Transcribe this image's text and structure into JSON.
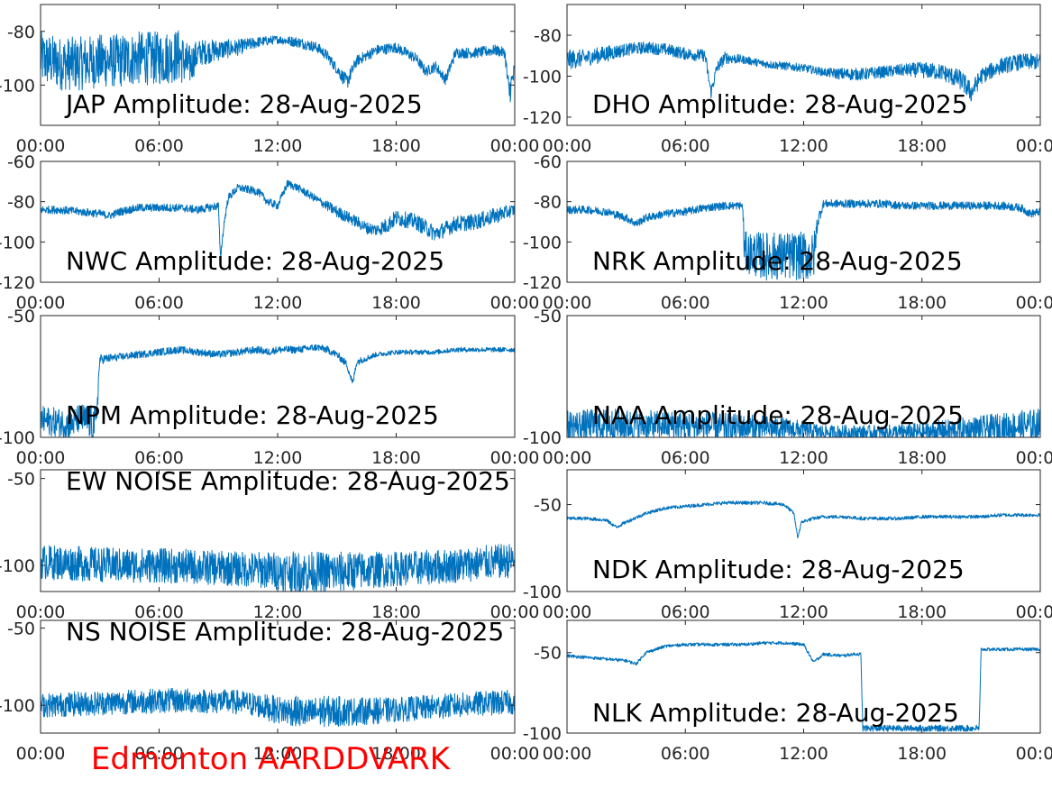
{
  "footer": "Edmonton AARDDVARK",
  "footer_color": "#ff0000",
  "series_color": "#0072bd",
  "chart_data": [
    {
      "type": "line",
      "title": "JAP Amplitude: 28-Aug-2025",
      "xticks": [
        "00:00",
        "06:00",
        "12:00",
        "18:00",
        "00:00"
      ],
      "ylim": [
        -115,
        -70
      ],
      "yticks": [
        -80,
        -100
      ],
      "x": [
        0,
        1,
        2,
        3,
        4,
        5,
        6,
        7,
        7.5,
        8,
        9,
        10,
        11,
        12,
        13,
        14,
        14.5,
        15,
        15.5,
        16,
        17,
        18,
        19,
        19.5,
        20,
        20.5,
        21,
        22,
        23,
        23.5,
        23.7,
        24
      ],
      "y": [
        -90,
        -92,
        -92,
        -91,
        -91,
        -90,
        -90,
        -89,
        -93,
        -88,
        -87,
        -86,
        -84,
        -83,
        -84,
        -86,
        -89,
        -94,
        -99,
        -91,
        -87,
        -86,
        -90,
        -95,
        -93,
        -98,
        -88,
        -88,
        -87,
        -88,
        -103,
        -95
      ],
      "noise": [
        10,
        10,
        10,
        10,
        10,
        10,
        10,
        10,
        8,
        5,
        4,
        3,
        2,
        1.5,
        2,
        2,
        2,
        2,
        3,
        2,
        2,
        2,
        2,
        2,
        2,
        2,
        2,
        2,
        2,
        2,
        6,
        4
      ]
    },
    {
      "type": "line",
      "title": "DHO Amplitude: 28-Aug-2025",
      "xticks": [
        "00:00",
        "06:00",
        "12:00",
        "18:00",
        "00:00"
      ],
      "ylim": [
        -124,
        -65
      ],
      "yticks": [
        -80,
        -100,
        -120
      ],
      "x": [
        0,
        1,
        2,
        3,
        4,
        5,
        6,
        7,
        7.3,
        7.6,
        8,
        9,
        10,
        11,
        12,
        13,
        14,
        15,
        16,
        17,
        18,
        19,
        20,
        20.5,
        21,
        22,
        23,
        24
      ],
      "y": [
        -92,
        -91,
        -89,
        -87,
        -86,
        -87,
        -89,
        -90,
        -108,
        -96,
        -91,
        -92,
        -94,
        -95,
        -96,
        -98,
        -99,
        -99,
        -98,
        -97,
        -97,
        -98,
        -102,
        -108,
        -100,
        -95,
        -93,
        -93
      ],
      "noise": [
        5,
        4,
        4,
        3,
        3,
        3,
        3,
        3,
        3,
        3,
        3,
        2,
        2,
        2,
        2,
        2,
        3,
        3,
        3,
        3,
        4,
        4,
        5,
        5,
        4,
        4,
        4,
        4
      ]
    },
    {
      "type": "line",
      "title": "NWC Amplitude: 28-Aug-2025",
      "xticks": [
        "00:00",
        "06:00",
        "12:00",
        "18:00",
        "00:00"
      ],
      "ylim": [
        -120,
        -60
      ],
      "yticks": [
        -60,
        -80,
        -100,
        -120
      ],
      "x": [
        0,
        1,
        2,
        3,
        3.5,
        4,
        5,
        6,
        7,
        8,
        8.5,
        9,
        9.1,
        9.3,
        9.5,
        10,
        11,
        11.5,
        12,
        12.5,
        13,
        14,
        15,
        16,
        16.5,
        17,
        17.5,
        18,
        19,
        20,
        21,
        22,
        23,
        24
      ],
      "y": [
        -84,
        -84,
        -85,
        -86,
        -87,
        -85,
        -83,
        -83,
        -83,
        -84,
        -83,
        -82,
        -108,
        -90,
        -78,
        -73,
        -75,
        -80,
        -82,
        -71,
        -73,
        -79,
        -85,
        -90,
        -93,
        -94,
        -92,
        -88,
        -90,
        -96,
        -91,
        -90,
        -87,
        -84
      ],
      "noise": [
        2,
        2,
        2,
        2,
        2,
        2,
        2,
        2,
        2,
        2,
        2,
        2,
        2,
        2,
        2,
        2,
        2,
        2,
        2,
        2,
        2,
        2,
        3,
        3,
        3,
        3,
        4,
        4,
        4,
        4,
        4,
        4,
        4,
        3
      ]
    },
    {
      "type": "line",
      "title": "NRK Amplitude: 28-Aug-2025",
      "xticks": [
        "00:00",
        "06:00",
        "12:00",
        "18:00",
        "00:00"
      ],
      "ylim": [
        -120,
        -60
      ],
      "yticks": [
        -60,
        -80,
        -100,
        -120
      ],
      "x": [
        0,
        1,
        2,
        3,
        3.5,
        4,
        5,
        6,
        7,
        8,
        8.9,
        9,
        10,
        11,
        12,
        12.5,
        12.7,
        13,
        14,
        15,
        16,
        17,
        18,
        19,
        20,
        21,
        22,
        23,
        23.5,
        24
      ],
      "y": [
        -84,
        -84,
        -85,
        -88,
        -91,
        -88,
        -86,
        -85,
        -83,
        -82,
        -82,
        -105,
        -107,
        -107,
        -107,
        -108,
        -90,
        -81,
        -81,
        -81,
        -81,
        -82,
        -82,
        -82,
        -82,
        -82,
        -82,
        -83,
        -86,
        -85
      ],
      "noise": [
        2,
        2,
        2,
        2,
        2,
        2,
        2,
        2,
        2,
        2,
        2,
        10,
        12,
        12,
        12,
        12,
        4,
        2,
        2,
        2,
        2,
        2,
        2,
        2,
        2,
        2,
        2,
        2,
        2,
        2
      ]
    },
    {
      "type": "line",
      "title": "NPM Amplitude: 28-Aug-2025",
      "xticks": [
        "00:00",
        "06:00",
        "12:00",
        "18:00",
        "00:00"
      ],
      "ylim": [
        -100,
        -50
      ],
      "yticks": [
        -50,
        -100
      ],
      "x": [
        0,
        1,
        1.5,
        2,
        2.8,
        3,
        4,
        5,
        6,
        7,
        8,
        9,
        10,
        11,
        11.5,
        12,
        13,
        14,
        14.5,
        15,
        15.5,
        15.8,
        16,
        17,
        18,
        19,
        20,
        21,
        22,
        23,
        24
      ],
      "y": [
        -93,
        -94,
        -95,
        -92,
        -95,
        -68,
        -67,
        -66,
        -65,
        -64,
        -65,
        -66,
        -65,
        -64,
        -65,
        -64,
        -64,
        -63,
        -64,
        -66,
        -70,
        -78,
        -69,
        -66,
        -65,
        -65,
        -65,
        -64,
        -64,
        -64,
        -64
      ],
      "noise": [
        6,
        6,
        6,
        6,
        8,
        2,
        1.5,
        1.5,
        1.5,
        1.5,
        1.5,
        1.5,
        1.5,
        1.5,
        1.5,
        1.5,
        1.5,
        1.5,
        1.5,
        1.5,
        1.5,
        1.5,
        1.5,
        1,
        1,
        1,
        1,
        1,
        1,
        1,
        1
      ]
    },
    {
      "type": "line",
      "title": "NAA Amplitude: 28-Aug-2025",
      "xticks": [
        "00:00",
        "06:00",
        "12:00",
        "18:00",
        "00:00"
      ],
      "ylim": [
        -100,
        -50
      ],
      "yticks": [
        -50,
        -100
      ],
      "x": [
        0,
        2,
        4,
        6,
        8,
        10,
        12,
        13,
        14,
        16,
        18,
        20,
        22,
        24
      ],
      "y": [
        -95,
        -95,
        -95,
        -95,
        -96,
        -96,
        -97,
        -98,
        -98,
        -98,
        -98,
        -97,
        -96,
        -95
      ],
      "noise": [
        6,
        7,
        6,
        6,
        6,
        5,
        4,
        3,
        3,
        3,
        4,
        5,
        6,
        7
      ]
    },
    {
      "type": "line",
      "title": "EW NOISE Amplitude: 28-Aug-2025",
      "xticks": [
        "00:00",
        "06:00",
        "12:00",
        "18:00",
        "00:00"
      ],
      "ylim": [
        -115,
        -45
      ],
      "yticks": [
        -50,
        -100
      ],
      "x": [
        0,
        2,
        4,
        6,
        8,
        10,
        12,
        13,
        14,
        15,
        16,
        18,
        20,
        22,
        24
      ],
      "y": [
        -98,
        -99,
        -100,
        -100,
        -101,
        -102,
        -103,
        -104,
        -104,
        -104,
        -103,
        -102,
        -101,
        -99,
        -97
      ],
      "noise": [
        10,
        10,
        10,
        10,
        10,
        10,
        11,
        12,
        12,
        12,
        11,
        10,
        10,
        10,
        10
      ]
    },
    {
      "type": "line",
      "title": "NDK Amplitude: 28-Aug-2025",
      "xticks": [
        "00:00",
        "06:00",
        "12:00",
        "18:00",
        "00:00"
      ],
      "ylim": [
        -100,
        -30
      ],
      "yticks": [
        -50,
        -100
      ],
      "x": [
        0,
        1,
        2,
        2.5,
        3,
        4,
        5,
        6,
        7,
        8,
        9,
        10,
        11,
        11.5,
        11.7,
        11.9,
        12.5,
        13,
        14,
        15,
        16,
        17,
        18,
        19,
        20,
        21,
        22,
        23,
        24
      ],
      "y": [
        -58,
        -58,
        -59,
        -63,
        -60,
        -55,
        -52,
        -51,
        -50,
        -49,
        -49,
        -49,
        -50,
        -55,
        -69,
        -60,
        -58,
        -57,
        -57,
        -58,
        -58,
        -58,
        -57,
        -57,
        -57,
        -57,
        -56,
        -56,
        -56
      ],
      "noise": [
        1,
        1,
        1,
        1,
        1,
        1,
        1,
        1,
        1,
        1,
        1,
        1,
        1,
        1,
        1,
        1,
        1,
        1,
        1,
        1,
        1,
        1,
        1,
        1,
        1,
        1,
        1,
        1,
        1
      ]
    },
    {
      "type": "line",
      "title": "NS NOISE Amplitude: 28-Aug-2025",
      "xticks": [
        "00:00",
        "06:00",
        "12:00",
        "18:00",
        "00:00"
      ],
      "ylim": [
        -118,
        -45
      ],
      "yticks": [
        -50,
        -100
      ],
      "x": [
        0,
        2,
        4,
        6,
        8,
        10,
        11,
        12,
        13,
        13.5,
        14,
        15,
        16,
        18,
        20,
        22,
        24
      ],
      "y": [
        -100,
        -99,
        -98,
        -97,
        -97,
        -98,
        -100,
        -103,
        -104,
        -106,
        -104,
        -104,
        -104,
        -103,
        -101,
        -99,
        -98
      ],
      "noise": [
        8,
        8,
        8,
        8,
        8,
        8,
        8,
        9,
        10,
        10,
        10,
        10,
        9,
        8,
        8,
        8,
        8
      ]
    },
    {
      "type": "line",
      "title": "NLK Amplitude: 28-Aug-2025",
      "xticks": [
        "00:00",
        "06:00",
        "12:00",
        "18:00",
        "00:00"
      ],
      "ylim": [
        -100,
        -30
      ],
      "yticks": [
        -50,
        -100
      ],
      "x": [
        0,
        1,
        2,
        3,
        3.5,
        4,
        5,
        6,
        7,
        8,
        9,
        10,
        11,
        12,
        12.5,
        13,
        14,
        14.5,
        14.9,
        15,
        16,
        17,
        18,
        19,
        20,
        20.9,
        21,
        22,
        23,
        24
      ],
      "y": [
        -52,
        -53,
        -54,
        -55,
        -57,
        -50,
        -46,
        -45,
        -45,
        -45,
        -45,
        -44,
        -44,
        -45,
        -56,
        -51,
        -52,
        -51,
        -51,
        -97,
        -97,
        -97,
        -97,
        -97,
        -97,
        -97,
        -48,
        -48,
        -48,
        -48
      ],
      "noise": [
        1,
        1,
        1,
        1,
        1,
        1,
        1,
        1,
        1,
        1,
        1,
        1,
        1,
        1,
        1,
        1,
        1,
        1,
        1,
        2,
        2,
        2,
        2,
        2,
        2,
        2,
        1,
        1,
        1,
        1
      ]
    }
  ]
}
